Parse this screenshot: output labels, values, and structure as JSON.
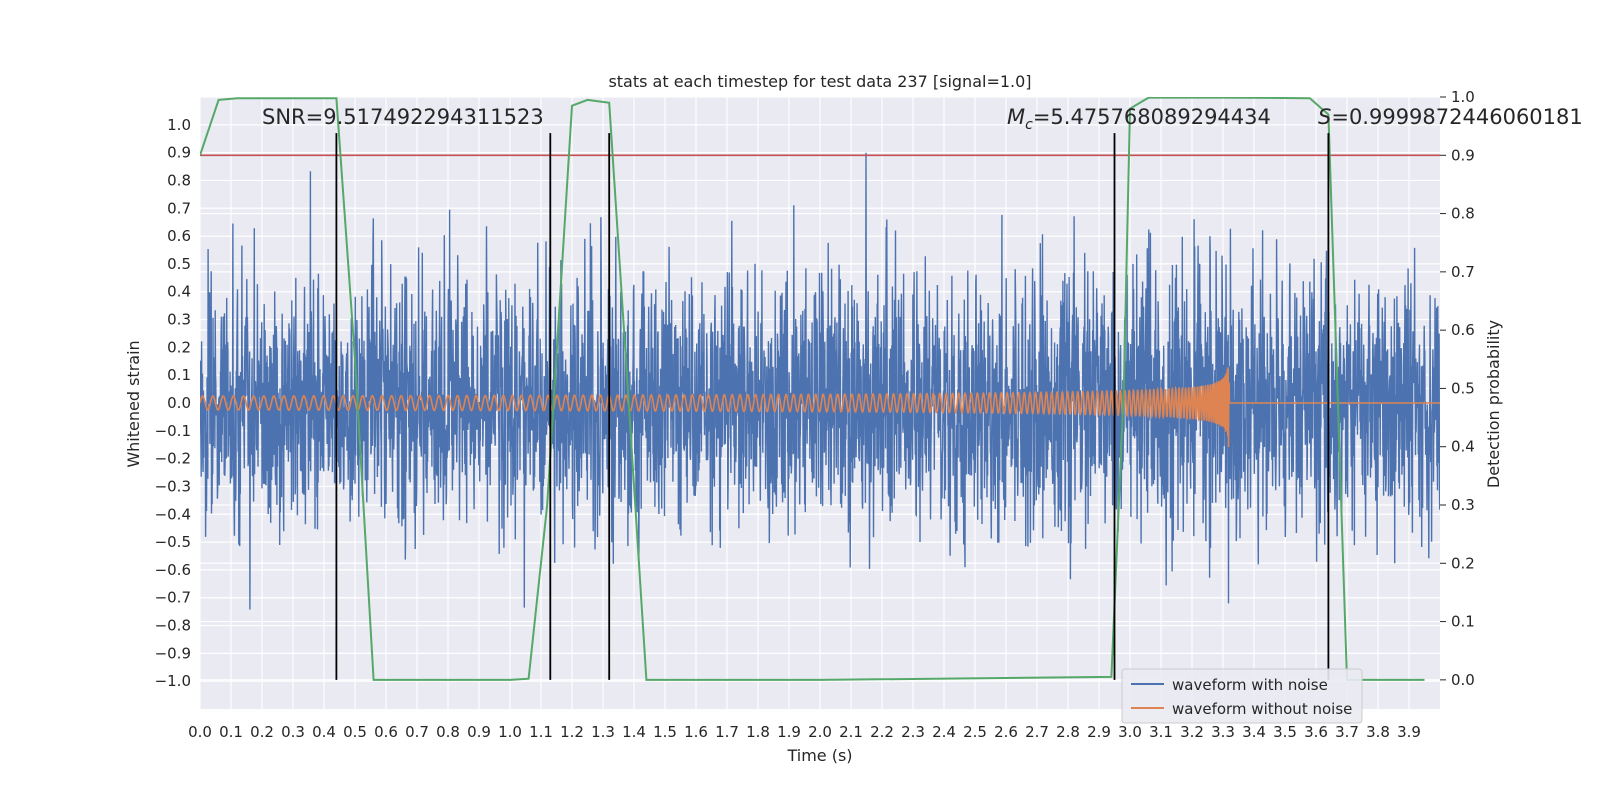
{
  "chart_data": {
    "type": "line",
    "title": "stats at each timestep for test data 237 [signal=1.0]",
    "xlabel": "Time (s)",
    "ylabel": "Whitened strain",
    "ylabel_right": "Detection probability",
    "xlim": [
      0.0,
      4.0
    ],
    "ylim": [
      -1.1,
      1.1
    ],
    "ylim_right": [
      -0.05,
      1.0
    ],
    "x_ticks": [
      "0.0",
      "0.1",
      "0.2",
      "0.3",
      "0.4",
      "0.5",
      "0.6",
      "0.7",
      "0.8",
      "0.9",
      "1.0",
      "1.1",
      "1.2",
      "1.3",
      "1.4",
      "1.5",
      "1.6",
      "1.7",
      "1.8",
      "1.9",
      "2.0",
      "2.1",
      "2.2",
      "2.3",
      "2.4",
      "2.5",
      "2.6",
      "2.7",
      "2.8",
      "2.9",
      "3.0",
      "3.1",
      "3.2",
      "3.3",
      "3.4",
      "3.5",
      "3.6",
      "3.7",
      "3.8",
      "3.9"
    ],
    "y_ticks": [
      "1.0",
      "0.9",
      "0.8",
      "0.7",
      "0.6",
      "0.5",
      "0.4",
      "0.3",
      "0.2",
      "0.1",
      "0.0",
      "-0.1",
      "-0.2",
      "-0.3",
      "-0.4",
      "-0.5",
      "-0.6",
      "-0.7",
      "-0.8",
      "-0.9",
      "-1.0"
    ],
    "y_ticks_right": [
      "1.0",
      "0.9",
      "0.8",
      "0.7",
      "0.6",
      "0.5",
      "0.4",
      "0.3",
      "0.2",
      "0.1",
      "0.0"
    ],
    "grid": true,
    "annotations": {
      "snr": "SNR=9.517492294311523",
      "mc_symbol": "M",
      "mc_sub": "c",
      "mc_value": "=5.475768089294434",
      "s_symbol": "S",
      "s_value": "=0.9999872446060181"
    },
    "legend": {
      "placement": "lower-right",
      "entries": [
        "waveform with noise",
        "waveform without noise"
      ]
    },
    "colors": {
      "noisy": "#4c72b0",
      "clean": "#dd8452",
      "prob": "#55a868",
      "threshold": "#c44e52",
      "markers": "#000000",
      "axes_bg": "#eaeaf2"
    },
    "threshold_prob": 0.9,
    "marker_times": [
      0.44,
      1.13,
      1.32,
      2.95,
      3.64
    ],
    "noise_amplitude": 0.5,
    "chirp": {
      "end_time": 3.32,
      "start_freq": 30,
      "start_amp": 0.025,
      "peak_amp": 0.19
    },
    "probability_series": {
      "t": [
        0.0,
        0.06,
        0.12,
        0.25,
        0.44,
        0.5,
        0.56,
        1.0,
        1.06,
        1.12,
        1.2,
        1.25,
        1.32,
        1.38,
        1.44,
        2.0,
        2.94,
        2.98,
        3.0,
        3.06,
        3.3,
        3.58,
        3.64,
        3.7,
        3.95
      ],
      "p": [
        0.9,
        0.995,
        0.998,
        0.998,
        0.998,
        0.55,
        0.0,
        0.0,
        0.002,
        0.3,
        0.985,
        0.995,
        0.99,
        0.5,
        0.0,
        0.0,
        0.005,
        0.5,
        0.98,
        0.999,
        0.999,
        0.998,
        0.97,
        0.0,
        0.0
      ]
    }
  }
}
